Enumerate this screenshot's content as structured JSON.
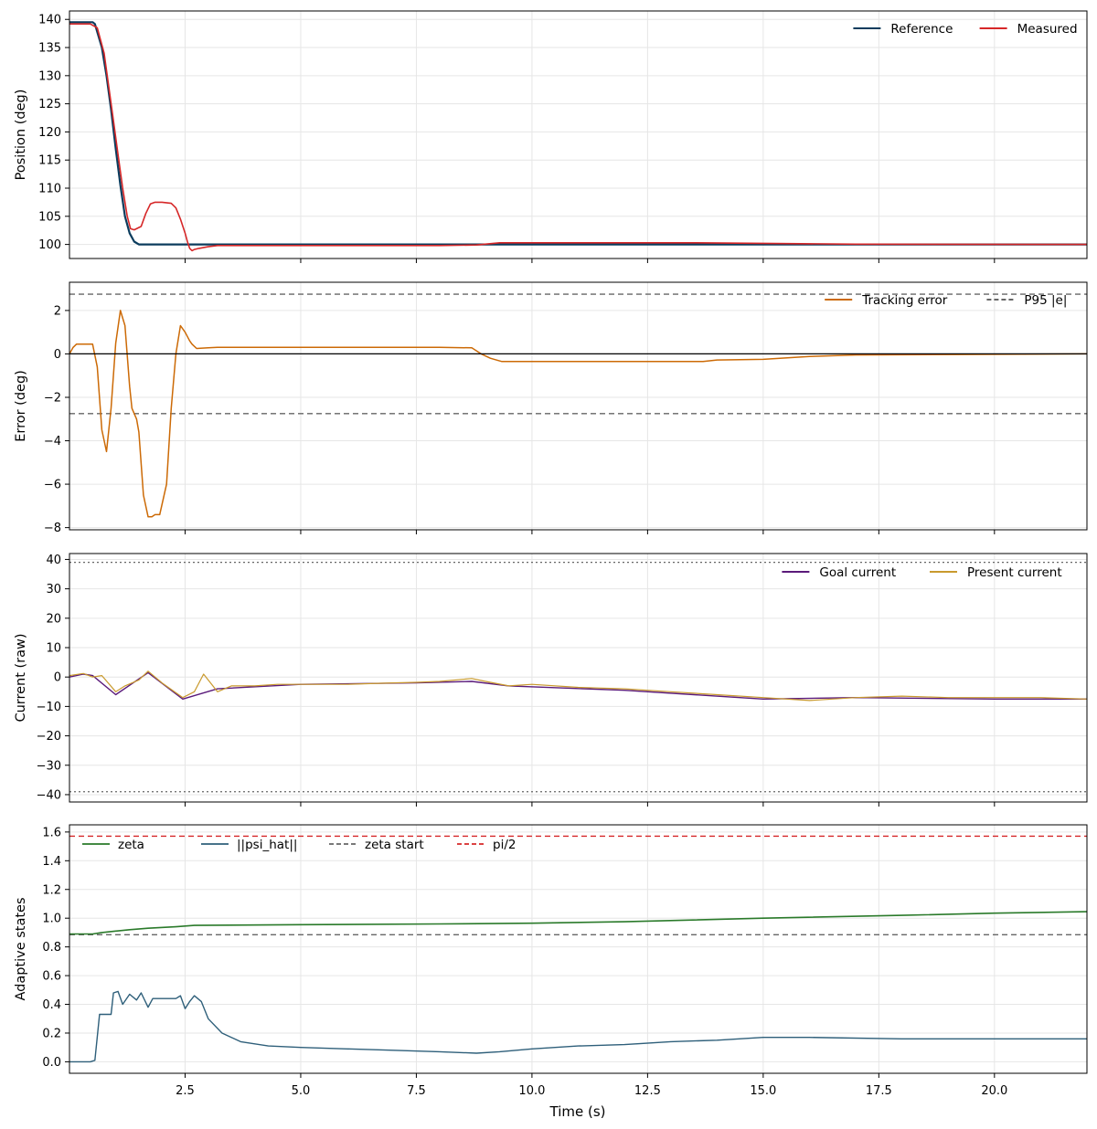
{
  "figure": {
    "xlabel": "Time (s)"
  },
  "chart_data": [
    {
      "type": "line",
      "ylabel": "Position (deg)",
      "xlim": [
        0,
        22
      ],
      "ylim": [
        97.5,
        141.5
      ],
      "xticks": [
        2.5,
        5.0,
        7.5,
        10.0,
        12.5,
        15.0,
        17.5,
        20.0
      ],
      "yticks": [
        100,
        105,
        110,
        115,
        120,
        125,
        130,
        135,
        140
      ],
      "ytick_labels": [
        "100",
        "105",
        "110",
        "115",
        "120",
        "125",
        "130",
        "135",
        "140"
      ],
      "grid": true,
      "legend": {
        "position": "top-right",
        "entries": [
          "Reference",
          "Measured"
        ]
      },
      "series": [
        {
          "name": "Reference",
          "color": "#0b3c5d",
          "width": 2.2,
          "x": [
            0,
            0.5,
            0.55,
            0.7,
            0.8,
            0.9,
            1.0,
            1.1,
            1.2,
            1.3,
            1.4,
            1.5,
            22
          ],
          "y": [
            139.5,
            139.5,
            139.2,
            135,
            130,
            124,
            117,
            110.5,
            105,
            102,
            100.5,
            100,
            100
          ]
        },
        {
          "name": "Measured",
          "color": "#d62728",
          "width": 1.6,
          "x": [
            0,
            0.45,
            0.6,
            0.75,
            0.85,
            0.95,
            1.05,
            1.15,
            1.25,
            1.32,
            1.4,
            1.55,
            1.65,
            1.75,
            1.85,
            2.0,
            2.2,
            2.3,
            2.4,
            2.5,
            2.55,
            2.6,
            2.65,
            2.7,
            2.8,
            3.0,
            3.2,
            4,
            5,
            6,
            7,
            8,
            8.8,
            9.3,
            10,
            13.5,
            15,
            17,
            22
          ],
          "y": [
            139.2,
            139.2,
            138.5,
            134,
            128,
            122,
            116,
            110,
            105,
            102.8,
            102.6,
            103.2,
            105.5,
            107.2,
            107.5,
            107.5,
            107.3,
            106.5,
            104.5,
            102,
            100.5,
            99.3,
            98.9,
            99.1,
            99.3,
            99.6,
            99.8,
            99.8,
            99.8,
            99.8,
            99.8,
            99.8,
            99.9,
            100.3,
            100.3,
            100.3,
            100.2,
            100.05,
            100
          ]
        }
      ],
      "hlines": []
    },
    {
      "type": "line",
      "ylabel": "Error (deg)",
      "xlim": [
        0,
        22
      ],
      "ylim": [
        -8.1,
        3.3
      ],
      "xticks": [
        2.5,
        5.0,
        7.5,
        10.0,
        12.5,
        15.0,
        17.5,
        20.0
      ],
      "yticks": [
        -8,
        -6,
        -4,
        -2,
        0,
        2
      ],
      "ytick_labels": [
        "−8",
        "−6",
        "−4",
        "−2",
        "0",
        "2"
      ],
      "grid": true,
      "legend": {
        "position": "top-right",
        "entries": [
          "Tracking error",
          "P95 |e|"
        ]
      },
      "series": [
        {
          "name": "Tracking error",
          "color": "#cc6a06",
          "width": 1.5,
          "x": [
            0,
            0.08,
            0.15,
            0.5,
            0.6,
            0.7,
            0.8,
            0.9,
            1.0,
            1.1,
            1.2,
            1.3,
            1.35,
            1.45,
            1.5,
            1.6,
            1.7,
            1.78,
            1.85,
            1.95,
            2.1,
            2.2,
            2.3,
            2.4,
            2.5,
            2.6,
            2.65,
            2.75,
            3.0,
            3.2,
            4,
            5,
            6,
            7,
            8,
            8.7,
            8.9,
            9.1,
            9.35,
            13.7,
            14.0,
            15.0,
            16.0,
            17.0,
            22
          ],
          "y": [
            0.0,
            0.3,
            0.45,
            0.45,
            -0.6,
            -3.5,
            -4.5,
            -2.5,
            0.5,
            2.0,
            1.3,
            -1.5,
            -2.5,
            -3.0,
            -3.6,
            -6.5,
            -7.5,
            -7.5,
            -7.4,
            -7.4,
            -6.0,
            -2.5,
            0.0,
            1.3,
            1.0,
            0.6,
            0.45,
            0.25,
            0.28,
            0.3,
            0.3,
            0.3,
            0.3,
            0.3,
            0.3,
            0.28,
            0.0,
            -0.2,
            -0.35,
            -0.35,
            -0.28,
            -0.25,
            -0.12,
            -0.05,
            0.0
          ]
        },
        {
          "name": "zero",
          "color": "#000000",
          "width": 1.3,
          "x": [
            0,
            22
          ],
          "y": [
            0,
            0
          ]
        }
      ],
      "hlines": [
        {
          "name": "P95 |e|",
          "y": 2.75,
          "color": "#666666",
          "dash": "6,4",
          "width": 1.4
        },
        {
          "name": "P95 |e|",
          "y": -2.75,
          "color": "#666666",
          "dash": "6,4",
          "width": 1.4
        }
      ]
    },
    {
      "type": "line",
      "ylabel": "Current (raw)",
      "xlim": [
        0,
        22
      ],
      "ylim": [
        -42.5,
        42
      ],
      "xticks": [
        2.5,
        5.0,
        7.5,
        10.0,
        12.5,
        15.0,
        17.5,
        20.0
      ],
      "yticks": [
        -40,
        -30,
        -20,
        -10,
        0,
        10,
        20,
        30,
        40
      ],
      "ytick_labels": [
        "−40",
        "−30",
        "−20",
        "−10",
        "0",
        "10",
        "20",
        "30",
        "40"
      ],
      "grid": true,
      "legend": {
        "position": "top-right",
        "entries": [
          "Goal current",
          "Present current"
        ]
      },
      "series": [
        {
          "name": "Goal current",
          "color": "#5a1a7a",
          "width": 1.4,
          "x": [
            0,
            0.3,
            0.5,
            1.0,
            1.7,
            2.45,
            3.2,
            5,
            7.5,
            8.7,
            9.5,
            12,
            15,
            17,
            20,
            22
          ],
          "y": [
            0,
            1,
            0.5,
            -6,
            1.5,
            -7.5,
            -4,
            -2.5,
            -2,
            -1.5,
            -3,
            -4.5,
            -7.5,
            -7,
            -7.5,
            -7.5
          ]
        },
        {
          "name": "Present current",
          "color": "#c99a2e",
          "width": 1.2,
          "x": [
            0,
            0.3,
            0.5,
            0.7,
            1.0,
            1.2,
            1.5,
            1.7,
            2.0,
            2.45,
            2.7,
            2.9,
            3.2,
            3.5,
            4,
            4.5,
            5,
            6,
            7,
            7.5,
            8,
            8.7,
            9.0,
            9.5,
            10,
            11,
            12,
            13,
            14,
            15,
            16,
            17,
            18,
            19,
            20,
            21,
            22
          ],
          "y": [
            0.5,
            1.2,
            0,
            0.5,
            -5,
            -3,
            -1,
            2,
            -2,
            -7,
            -5,
            1,
            -5,
            -3,
            -3,
            -2.5,
            -2.5,
            -2.5,
            -2,
            -1.8,
            -1.5,
            -0.5,
            -1.5,
            -3,
            -2.5,
            -3.5,
            -4,
            -5,
            -6,
            -7,
            -8,
            -7,
            -6.5,
            -7,
            -7,
            -7,
            -7.5
          ]
        }
      ],
      "hlines": [
        {
          "name": "limit",
          "y": 39,
          "color": "#666666",
          "dash": "2,3",
          "width": 1.3
        },
        {
          "name": "limit",
          "y": -39,
          "color": "#666666",
          "dash": "2,3",
          "width": 1.3
        }
      ]
    },
    {
      "type": "line",
      "ylabel": "Adaptive states",
      "xlim": [
        0,
        22
      ],
      "ylim": [
        -0.08,
        1.65
      ],
      "xticks": [
        2.5,
        5.0,
        7.5,
        10.0,
        12.5,
        15.0,
        17.5,
        20.0
      ],
      "xtick_labels": [
        "2.5",
        "5.0",
        "7.5",
        "10.0",
        "12.5",
        "15.0",
        "17.5",
        "20.0"
      ],
      "yticks": [
        0.0,
        0.2,
        0.4,
        0.6,
        0.8,
        1.0,
        1.2,
        1.4,
        1.6
      ],
      "ytick_labels": [
        "0.0",
        "0.2",
        "0.4",
        "0.6",
        "0.8",
        "1.0",
        "1.2",
        "1.4",
        "1.6"
      ],
      "grid": true,
      "legend": {
        "position": "top-left",
        "entries": [
          "zeta",
          "||psi_hat||",
          "zeta start",
          "pi/2"
        ]
      },
      "series": [
        {
          "name": "zeta",
          "color": "#2a7a2a",
          "width": 1.6,
          "x": [
            0,
            0.5,
            0.7,
            1.0,
            1.3,
            1.7,
            2.3,
            2.7,
            5,
            8,
            10,
            12,
            15,
            18,
            20,
            22
          ],
          "y": [
            0.89,
            0.89,
            0.9,
            0.91,
            0.92,
            0.93,
            0.94,
            0.95,
            0.955,
            0.96,
            0.965,
            0.975,
            1.0,
            1.02,
            1.035,
            1.045
          ]
        },
        {
          "name": "||psi_hat||",
          "color": "#2e5f7a",
          "width": 1.4,
          "x": [
            0,
            0.45,
            0.55,
            0.65,
            0.9,
            0.95,
            1.05,
            1.15,
            1.3,
            1.45,
            1.55,
            1.7,
            1.8,
            1.9,
            2.3,
            2.4,
            2.5,
            2.6,
            2.7,
            2.85,
            3.0,
            3.3,
            3.7,
            4.3,
            5,
            6,
            7,
            8,
            8.8,
            9.3,
            10,
            11,
            12,
            13,
            14,
            15,
            16,
            18,
            20,
            22
          ],
          "y": [
            0,
            0,
            0.01,
            0.33,
            0.33,
            0.48,
            0.49,
            0.4,
            0.47,
            0.43,
            0.48,
            0.38,
            0.44,
            0.44,
            0.44,
            0.46,
            0.37,
            0.42,
            0.46,
            0.42,
            0.3,
            0.2,
            0.14,
            0.11,
            0.1,
            0.09,
            0.08,
            0.07,
            0.06,
            0.07,
            0.09,
            0.11,
            0.12,
            0.14,
            0.15,
            0.17,
            0.17,
            0.16,
            0.16,
            0.16
          ]
        }
      ],
      "hlines": [
        {
          "name": "zeta start",
          "y": 0.885,
          "color": "#666666",
          "dash": "6,4",
          "width": 1.4
        },
        {
          "name": "pi/2",
          "y": 1.5708,
          "color": "#d62728",
          "dash": "6,4",
          "width": 1.4
        }
      ]
    }
  ]
}
